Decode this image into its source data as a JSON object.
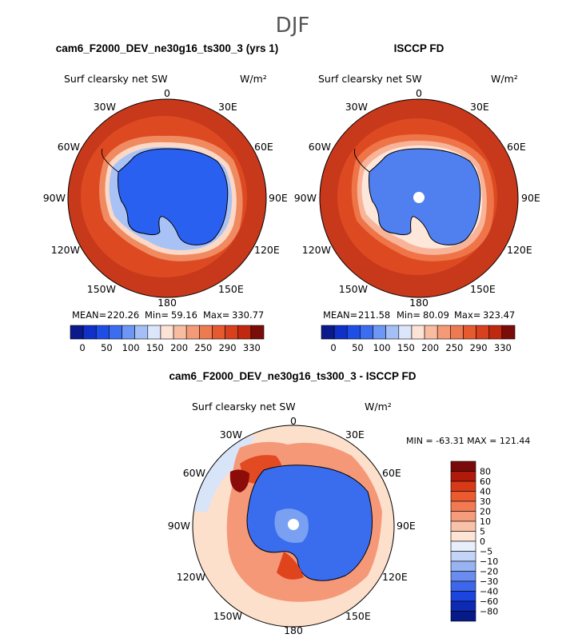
{
  "season": "DJF",
  "colors": {
    "land_blue": "#2a60f0",
    "ocean_red": "#c8381a",
    "ice_edge": "#ffffff"
  },
  "chart_data": [
    {
      "type": "heatmap",
      "projection": "south-polar-stereographic",
      "case_title": "cam6_F2000_DEV_ne30g16_ts300_3 (yrs 1)",
      "variable": "Surf clearsky net SW",
      "units": "W/m²",
      "longitude_labels": [
        "0",
        "30E",
        "60E",
        "90E",
        "120E",
        "150E",
        "180",
        "150W",
        "120W",
        "90W",
        "60W",
        "30W"
      ],
      "stats": {
        "mean_label": "MEAN=",
        "mean": "220.26",
        "min_label": "Min=",
        "min": "59.16",
        "max_label": "Max=",
        "max": "330.77"
      },
      "colorbar_ticks": [
        "0",
        "50",
        "100",
        "150",
        "200",
        "250",
        "290",
        "330"
      ],
      "colorbar_colors": [
        "#0a1a8a",
        "#1030c8",
        "#1e4ee6",
        "#3c6cf0",
        "#6e96f4",
        "#a4bef6",
        "#dce6fa",
        "#fde2d6",
        "#f8bca0",
        "#f49a76",
        "#ee7a52",
        "#e65a30",
        "#d84020",
        "#c02810",
        "#7a0c0a"
      ]
    },
    {
      "type": "heatmap",
      "projection": "south-polar-stereographic",
      "case_title": "ISCCP FD",
      "variable": "Surf clearsky net SW",
      "units": "W/m²",
      "longitude_labels": [
        "0",
        "30E",
        "60E",
        "90E",
        "120E",
        "150E",
        "180",
        "150W",
        "120W",
        "90W",
        "60W",
        "30W"
      ],
      "stats": {
        "mean_label": "MEAN=",
        "mean": "211.58",
        "min_label": "Min=",
        "min": "80.09",
        "max_label": "Max=",
        "max": "323.47"
      },
      "colorbar_ticks": [
        "0",
        "50",
        "100",
        "150",
        "200",
        "250",
        "290",
        "330"
      ],
      "colorbar_colors": [
        "#0a1a8a",
        "#1030c8",
        "#1e4ee6",
        "#3c6cf0",
        "#6e96f4",
        "#a4bef6",
        "#dce6fa",
        "#fde2d6",
        "#f8bca0",
        "#f49a76",
        "#ee7a52",
        "#e65a30",
        "#d84020",
        "#c02810",
        "#7a0c0a"
      ]
    },
    {
      "type": "heatmap",
      "projection": "south-polar-stereographic",
      "case_title": "cam6_F2000_DEV_ne30g16_ts300_3 - ISCCP FD",
      "variable": "Surf clearsky net SW",
      "units": "W/m²",
      "longitude_labels": [
        "0",
        "30E",
        "60E",
        "90E",
        "120E",
        "150E",
        "180",
        "150W",
        "120W",
        "90W",
        "60W",
        "30W"
      ],
      "minmax_text": "MIN = -63.31  MAX = 121.44",
      "colorbar_ticks": [
        "80",
        "60",
        "40",
        "30",
        "20",
        "10",
        "5",
        "0",
        "−5",
        "−10",
        "−20",
        "−30",
        "−40",
        "−60",
        "−80"
      ],
      "colorbar_colors": [
        "#7a0a0a",
        "#b01a0a",
        "#d83a18",
        "#ec5a30",
        "#f27a52",
        "#f69c7c",
        "#f9c2a8",
        "#fde4d4",
        "#e8eefa",
        "#c4d4f6",
        "#98b2f2",
        "#6a8cee",
        "#3e66ea",
        "#1c44de",
        "#0c2ab4",
        "#061a88"
      ]
    }
  ]
}
